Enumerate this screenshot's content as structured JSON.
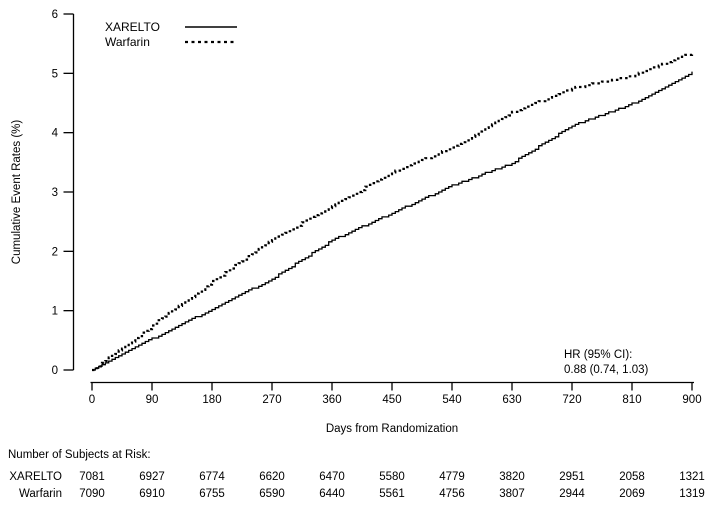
{
  "chart_data": {
    "type": "line",
    "subtype": "kaplan-meier-step",
    "title": "",
    "xlabel": "Days from Randomization",
    "ylabel": "Cumulative Event Rates (%)",
    "xlim": [
      0,
      900
    ],
    "ylim": [
      0,
      6
    ],
    "xticks": [
      0,
      90,
      180,
      270,
      360,
      450,
      540,
      630,
      720,
      810,
      900
    ],
    "yticks": [
      0,
      1,
      2,
      3,
      4,
      5,
      6
    ],
    "grid": false,
    "legend_position": "top-left-inside",
    "annotation": {
      "line1": "HR (95% CI):",
      "line2": "0.88 (0.74, 1.03)"
    },
    "series": [
      {
        "name": "XARELTO",
        "style": "solid",
        "color": "#000000",
        "x": [
          0,
          90,
          180,
          270,
          360,
          450,
          540,
          630,
          720,
          810,
          900
        ],
        "y": [
          0,
          0.54,
          1.04,
          1.55,
          2.2,
          2.66,
          3.12,
          3.5,
          4.13,
          4.5,
          5.03
        ]
      },
      {
        "name": "Warfarin",
        "style": "dashed",
        "color": "#000000",
        "x": [
          0,
          90,
          180,
          270,
          360,
          450,
          540,
          630,
          720,
          810,
          900
        ],
        "y": [
          0,
          0.76,
          1.5,
          2.2,
          2.78,
          3.34,
          3.76,
          4.35,
          4.76,
          4.97,
          5.36
        ]
      }
    ]
  },
  "risk_table": {
    "title": "Number of Subjects at Risk:",
    "days": [
      0,
      90,
      180,
      270,
      360,
      450,
      540,
      630,
      720,
      810,
      900
    ],
    "rows": [
      {
        "label": "XARELTO",
        "counts": [
          "7081",
          "6927",
          "6774",
          "6620",
          "6470",
          "5580",
          "4779",
          "3820",
          "2951",
          "2058",
          "1321"
        ]
      },
      {
        "label": "Warfarin",
        "counts": [
          "7090",
          "6910",
          "6755",
          "6590",
          "6440",
          "5561",
          "4756",
          "3807",
          "2944",
          "2069",
          "1319"
        ]
      }
    ]
  }
}
